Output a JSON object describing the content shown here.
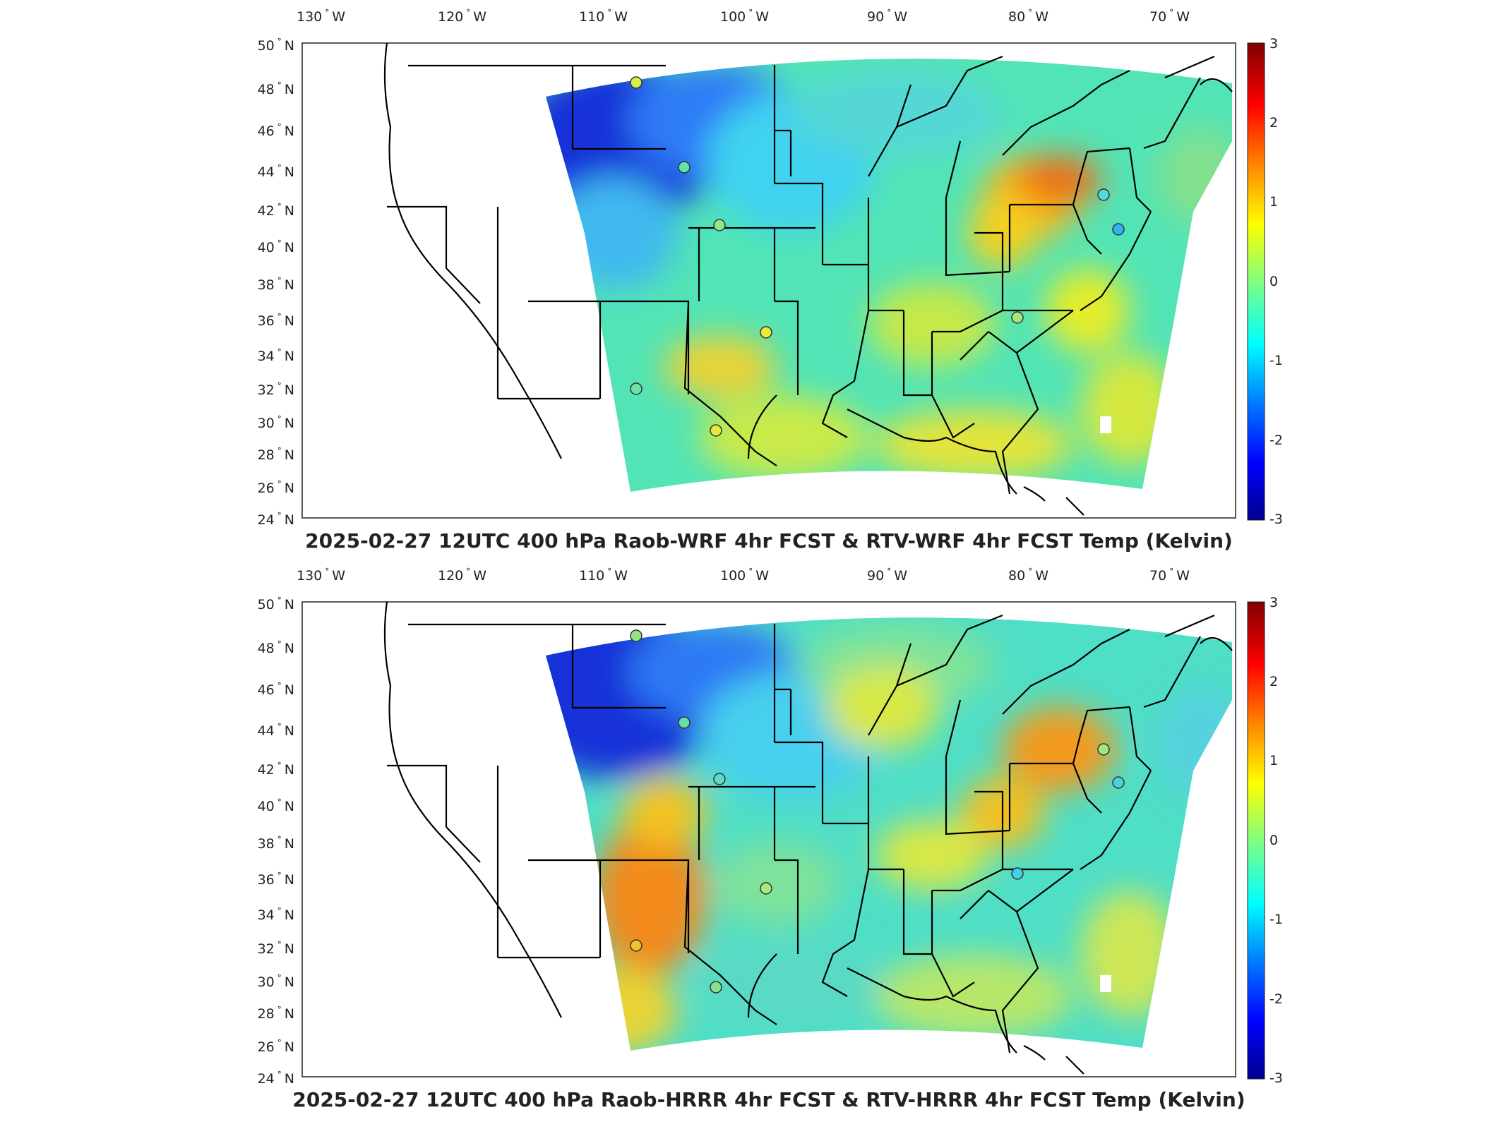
{
  "colorbar": {
    "ticks": [
      "3",
      "2",
      "1",
      "0",
      "-1",
      "-2",
      "-3"
    ]
  },
  "lon_labels": [
    "130",
    "120",
    "110",
    "100",
    "90",
    "80",
    "70"
  ],
  "lon_hemi": "W",
  "lat_labels": [
    "50",
    "48",
    "46",
    "44",
    "42",
    "40",
    "38",
    "36",
    "34",
    "32",
    "30",
    "28",
    "26",
    "24"
  ],
  "lat_hemi": "N",
  "deg": "°",
  "panels": [
    {
      "title": "2025-02-27 12UTC 400 hPa Raob-WRF 4hr FCST & RTV-WRF 4hr FCST Temp (Kelvin)",
      "warm_regions": [
        "Great Lakes / New York",
        "Pennsylvania",
        "Carolinas",
        "Texas"
      ],
      "cold_regions": [
        "Montana",
        "Wyoming",
        "South Dakota"
      ]
    },
    {
      "title": "2025-02-27 12UTC 400 hPa Raob-HRRR 4hr FCST & RTV-HRRR 4hr FCST Temp (Kelvin)",
      "warm_regions": [
        "Arizona / New Mexico",
        "Colorado",
        "New York",
        "Pennsylvania"
      ],
      "cold_regions": [
        "Montana",
        "Wyoming",
        "Idaho"
      ]
    }
  ],
  "colors": {
    "colormap": [
      "#00008f",
      "#0000ff",
      "#0080ff",
      "#00ffff",
      "#80ff80",
      "#ffff00",
      "#ff8000",
      "#ff0000",
      "#800000"
    ],
    "field_base": "#49e0c4"
  }
}
